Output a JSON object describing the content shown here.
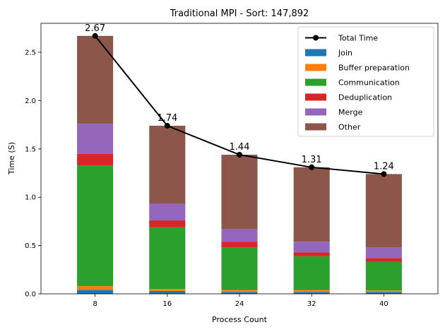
{
  "chart_data": {
    "type": "bar",
    "title": "Traditional MPI - Sort: 147,892",
    "xlabel": "Process Count",
    "ylabel": "Time (S)",
    "categories": [
      "8",
      "16",
      "24",
      "32",
      "40"
    ],
    "ylim": [
      0,
      2.8
    ],
    "yticks": [
      "0.0",
      "0.5",
      "1.0",
      "1.5",
      "2.0",
      "2.5"
    ],
    "stacked": true,
    "series": [
      {
        "name": "Join",
        "color": "#1f77b4",
        "values": [
          0.04,
          0.03,
          0.02,
          0.02,
          0.02
        ]
      },
      {
        "name": "Buffer preparation",
        "color": "#ff7f0e",
        "values": [
          0.04,
          0.02,
          0.02,
          0.02,
          0.015
        ]
      },
      {
        "name": "Communication",
        "color": "#2ca02c",
        "values": [
          1.25,
          0.64,
          0.44,
          0.35,
          0.295
        ]
      },
      {
        "name": "Deduplication",
        "color": "#d62728",
        "values": [
          0.12,
          0.07,
          0.06,
          0.04,
          0.04
        ]
      },
      {
        "name": "Merge",
        "color": "#9467bd",
        "values": [
          0.31,
          0.17,
          0.13,
          0.11,
          0.11
        ]
      },
      {
        "name": "Other",
        "color": "#8c564b",
        "values": [
          0.91,
          0.81,
          0.77,
          0.77,
          0.76
        ]
      }
    ],
    "line": {
      "name": "Total Time",
      "color": "#000000",
      "values": [
        2.67,
        1.74,
        1.44,
        1.31,
        1.24
      ]
    },
    "data_labels": [
      "2.67",
      "1.74",
      "1.44",
      "1.31",
      "1.24"
    ],
    "legend_position": "top-right",
    "grid": false
  }
}
